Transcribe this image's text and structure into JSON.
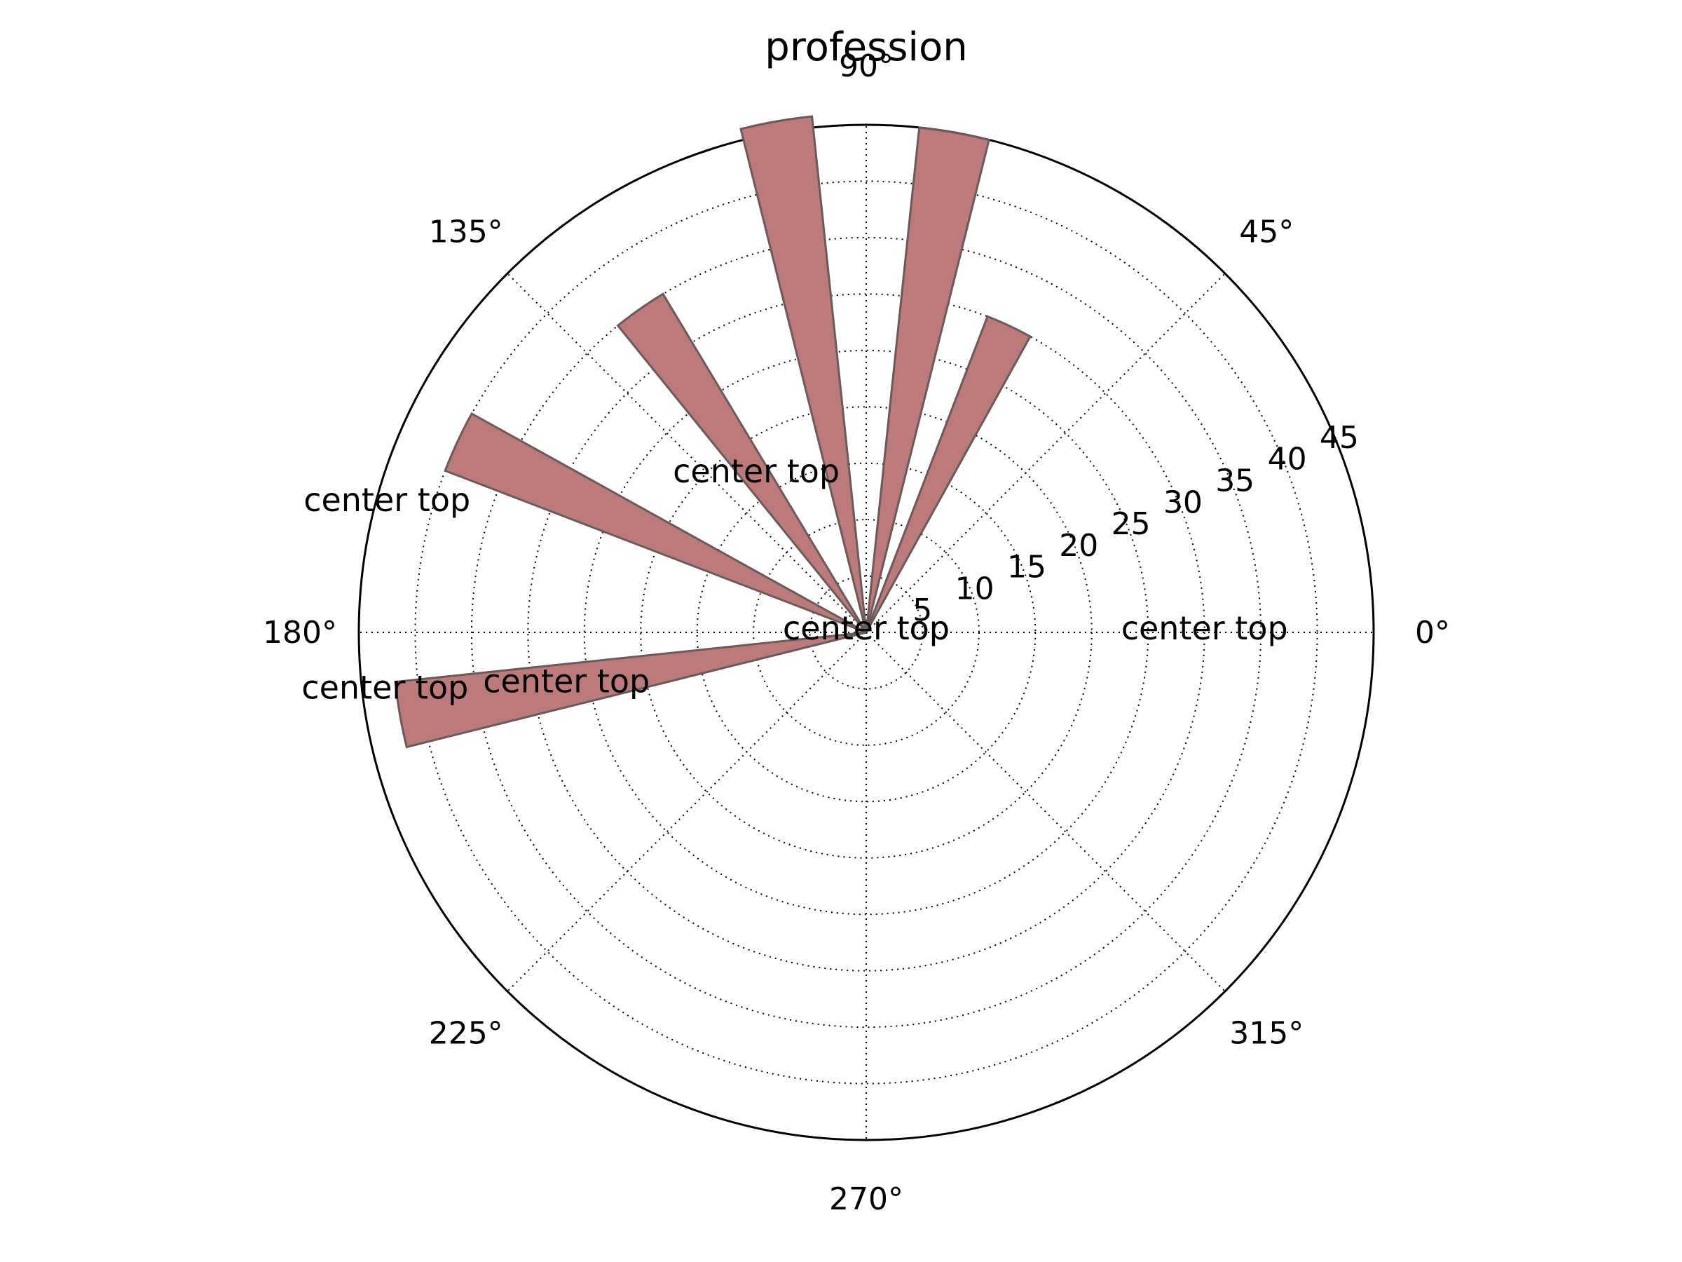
{
  "chart_data": {
    "type": "bar",
    "projection": "polar",
    "title": "profession",
    "angles_deg": [
      0,
      65,
      80,
      100,
      125,
      155,
      190
    ],
    "values": [
      0,
      30,
      45,
      46,
      35,
      40,
      42
    ],
    "bar_labels": [
      "center top",
      "center top",
      "center top",
      "center top",
      "center top",
      "center top",
      "center top"
    ],
    "annotations": [
      {
        "text": "center top",
        "angle_deg": 0,
        "r": 30
      },
      {
        "text": "center top",
        "angle_deg": 0,
        "r": 0
      },
      {
        "text": "center top",
        "angle_deg": 65,
        "r": 0
      },
      {
        "text": "center top",
        "angle_deg": 125,
        "r": 17
      },
      {
        "text": "center top",
        "angle_deg": 165,
        "r": 44
      },
      {
        "text": "center top",
        "angle_deg": 187,
        "r": 43
      },
      {
        "text": "center top",
        "angle_deg": 190,
        "r": 27
      }
    ],
    "bar_width_deg": 8,
    "angle_ticks": [
      "0°",
      "45°",
      "90°",
      "135°",
      "180°",
      "225°",
      "270°",
      "315°"
    ],
    "radial_ticks": [
      "5",
      "10",
      "15",
      "20",
      "25",
      "30",
      "35",
      "40",
      "45"
    ],
    "rlim": [
      0,
      45
    ],
    "grid": true,
    "colors": {
      "bar_fill": "#bc7a7a",
      "bar_edge": "#6a5a5a"
    }
  }
}
